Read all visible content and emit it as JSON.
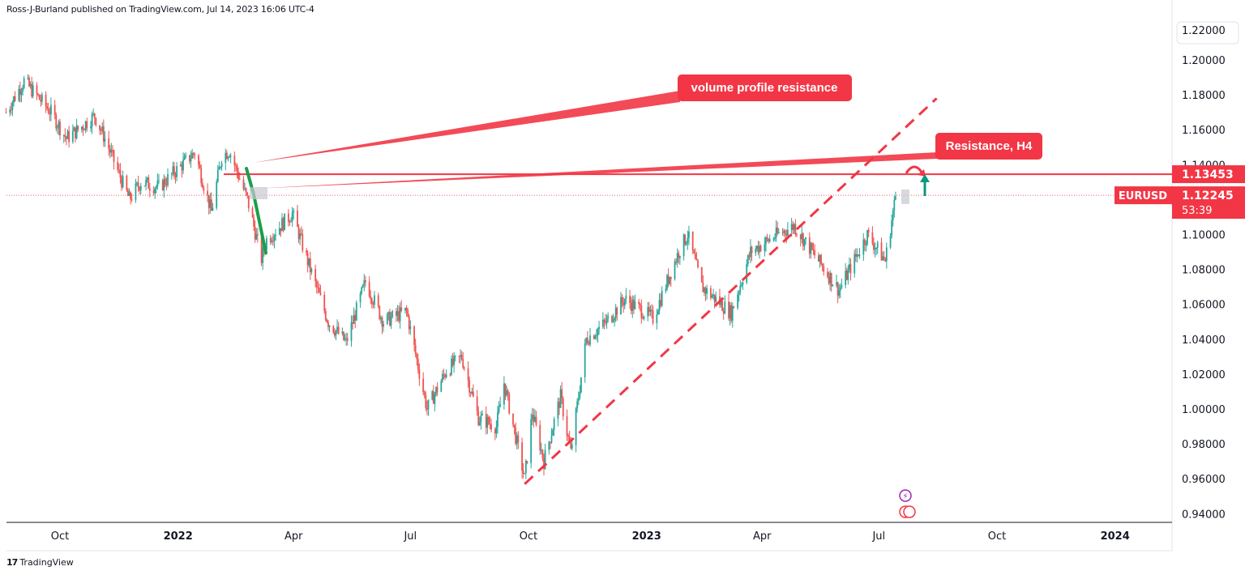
{
  "header": {
    "published": "Ross-J-Burland published on TradingView.com, Jul 14, 2023 16:06 UTC-4"
  },
  "footer": {
    "logo_mark": "17",
    "brand": "TradingView"
  },
  "colors": {
    "up": "#26a69a",
    "down": "#ef5350",
    "annotation": "#f23645",
    "green_arrow": "#089981",
    "grid_line": "#e0e3eb"
  },
  "chart_data": {
    "type": "candlestick",
    "symbol": "EURUSD",
    "timeframe": "daily",
    "y_axis": {
      "ylim": [
        0.935,
        1.215
      ],
      "ticks": [
        "1.20000",
        "1.18000",
        "1.16000",
        "1.14000",
        "1.10000",
        "1.08000",
        "1.06000",
        "1.04000",
        "1.02000",
        "1.00000",
        "0.98000",
        "0.96000",
        "0.94000"
      ],
      "tick_values": [
        1.2,
        1.18,
        1.16,
        1.14,
        1.1,
        1.08,
        1.06,
        1.04,
        1.02,
        1.0,
        0.98,
        0.96,
        0.94
      ],
      "top_partial_label": "1.22000",
      "top_partial_value": 1.22
    },
    "x_axis": {
      "labels": [
        {
          "text": "Oct",
          "bold": false
        },
        {
          "text": "2022",
          "bold": true
        },
        {
          "text": "Apr",
          "bold": false
        },
        {
          "text": "Jul",
          "bold": false
        },
        {
          "text": "Oct",
          "bold": false
        },
        {
          "text": "2023",
          "bold": true
        },
        {
          "text": "Apr",
          "bold": false
        },
        {
          "text": "Jul",
          "bold": false
        },
        {
          "text": "Oct",
          "bold": false
        },
        {
          "text": "2024",
          "bold": true
        }
      ],
      "label_dates": [
        "2021-10-01",
        "2022-01-01",
        "2022-04-01",
        "2022-07-01",
        "2022-10-01",
        "2023-01-01",
        "2023-04-01",
        "2023-07-01",
        "2023-10-01",
        "2024-01-01"
      ]
    },
    "price_path": [
      [
        "2021-08-20",
        1.17
      ],
      [
        "2021-09-03",
        1.188
      ],
      [
        "2021-09-10",
        1.182
      ],
      [
        "2021-09-24",
        1.17
      ],
      [
        "2021-10-06",
        1.155
      ],
      [
        "2021-10-15",
        1.16
      ],
      [
        "2021-10-28",
        1.168
      ],
      [
        "2021-11-05",
        1.155
      ],
      [
        "2021-11-24",
        1.12
      ],
      [
        "2021-12-03",
        1.13
      ],
      [
        "2021-12-17",
        1.127
      ],
      [
        "2021-12-31",
        1.137
      ],
      [
        "2022-01-14",
        1.147
      ],
      [
        "2022-01-27",
        1.113
      ],
      [
        "2022-02-04",
        1.145
      ],
      [
        "2022-02-10",
        1.148
      ],
      [
        "2022-02-24",
        1.12
      ],
      [
        "2022-03-07",
        1.086
      ],
      [
        "2022-03-11",
        1.097
      ],
      [
        "2022-03-31",
        1.112
      ],
      [
        "2022-04-14",
        1.08
      ],
      [
        "2022-04-28",
        1.05
      ],
      [
        "2022-05-12",
        1.038
      ],
      [
        "2022-05-27",
        1.073
      ],
      [
        "2022-06-10",
        1.05
      ],
      [
        "2022-06-28",
        1.056
      ],
      [
        "2022-07-14",
        1.0
      ],
      [
        "2022-07-29",
        1.022
      ],
      [
        "2022-08-10",
        1.03
      ],
      [
        "2022-08-23",
        0.995
      ],
      [
        "2022-09-06",
        0.99
      ],
      [
        "2022-09-12",
        1.015
      ],
      [
        "2022-09-28",
        0.96
      ],
      [
        "2022-10-04",
        0.998
      ],
      [
        "2022-10-13",
        0.97
      ],
      [
        "2022-10-26",
        1.007
      ],
      [
        "2022-11-03",
        0.975
      ],
      [
        "2022-11-15",
        1.04
      ],
      [
        "2022-12-01",
        1.05
      ],
      [
        "2022-12-15",
        1.063
      ],
      [
        "2023-01-06",
        1.052
      ],
      [
        "2023-01-26",
        1.09
      ],
      [
        "2023-02-02",
        1.1
      ],
      [
        "2023-02-13",
        1.07
      ],
      [
        "2023-03-08",
        1.055
      ],
      [
        "2023-03-23",
        1.09
      ],
      [
        "2023-04-13",
        1.1
      ],
      [
        "2023-04-26",
        1.105
      ],
      [
        "2023-05-31",
        1.068
      ],
      [
        "2023-06-22",
        1.1
      ],
      [
        "2023-07-06",
        1.085
      ],
      [
        "2023-07-14",
        1.122
      ]
    ],
    "last_price": "1.12245",
    "countdown": "53:39",
    "annotations": [
      {
        "type": "label",
        "text": "volume profile resistance"
      },
      {
        "type": "label",
        "text": "Resistance, H4"
      },
      {
        "type": "horizontal_line",
        "price": 1.13453,
        "label": "1.13453"
      },
      {
        "type": "trendline_dashed",
        "points": [
          [
            "2022-09-28",
            0.957
          ],
          [
            "2023-08-15",
            1.178
          ]
        ]
      }
    ]
  }
}
